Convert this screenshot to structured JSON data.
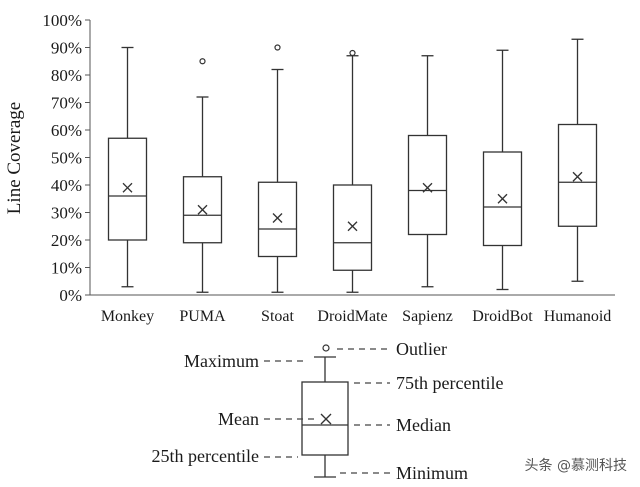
{
  "chart_data": {
    "type": "box",
    "ylabel": "Line Coverage",
    "yticks": [
      "0%",
      "10%",
      "20%",
      "30%",
      "40%",
      "50%",
      "60%",
      "70%",
      "80%",
      "90%",
      "100%"
    ],
    "ylim": [
      0,
      100
    ],
    "grid": false,
    "categories": [
      "Monkey",
      "PUMA",
      "Stoat",
      "DroidMate",
      "Sapienz",
      "DroidBot",
      "Humanoid"
    ],
    "boxes": [
      {
        "category": "Monkey",
        "min": 3,
        "q1": 20,
        "median": 36,
        "q3": 57,
        "max": 90,
        "mean": 39,
        "outliers": []
      },
      {
        "category": "PUMA",
        "min": 1,
        "q1": 19,
        "median": 29,
        "q3": 43,
        "max": 72,
        "mean": 31,
        "outliers": [
          85
        ]
      },
      {
        "category": "Stoat",
        "min": 1,
        "q1": 14,
        "median": 24,
        "q3": 41,
        "max": 82,
        "mean": 28,
        "outliers": [
          90
        ]
      },
      {
        "category": "DroidMate",
        "min": 1,
        "q1": 9,
        "median": 19,
        "q3": 40,
        "max": 87,
        "mean": 25,
        "outliers": [
          88
        ]
      },
      {
        "category": "Sapienz",
        "min": 3,
        "q1": 22,
        "median": 38,
        "q3": 58,
        "max": 87,
        "mean": 39,
        "outliers": []
      },
      {
        "category": "DroidBot",
        "min": 2,
        "q1": 18,
        "median": 32,
        "q3": 52,
        "max": 89,
        "mean": 35,
        "outliers": []
      },
      {
        "category": "Humanoid",
        "min": 5,
        "q1": 25,
        "median": 41,
        "q3": 62,
        "max": 93,
        "mean": 43,
        "outliers": []
      }
    ]
  },
  "legend": {
    "maximum": "Maximum",
    "outlier": "Outlier",
    "percentile75": "75th percentile",
    "mean": "Mean",
    "median": "Median",
    "percentile25": "25th percentile",
    "minimum": "Minimum"
  },
  "watermark": "头条 @慕测科技"
}
